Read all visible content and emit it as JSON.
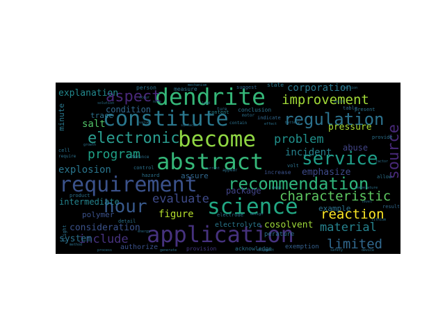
{
  "words": [
    {
      "text": "dendrite",
      "color": "#35b779"
    },
    {
      "text": "constitute",
      "color": "#2a788e"
    },
    {
      "text": "abstract",
      "color": "#35b779"
    },
    {
      "text": "become",
      "color": "#90d743"
    },
    {
      "text": "requirement",
      "color": "#3b528b"
    },
    {
      "text": "recommendation",
      "color": "#2fb47c"
    },
    {
      "text": "science",
      "color": "#22a884"
    },
    {
      "text": "application",
      "color": "#46327e"
    },
    {
      "text": "service",
      "color": "#1f9e89"
    },
    {
      "text": "regulation",
      "color": "#2c728e"
    },
    {
      "text": "electronic",
      "color": "#2a9d8f"
    },
    {
      "text": "aspect",
      "color": "#482878"
    },
    {
      "text": "improvement",
      "color": "#a2da37"
    },
    {
      "text": "source",
      "color": "#482878"
    },
    {
      "text": "hour",
      "color": "#38598c"
    },
    {
      "text": "characteristic",
      "color": "#5ec962"
    },
    {
      "text": "program",
      "color": "#1fa187"
    },
    {
      "text": "reaction",
      "color": "#fde725"
    },
    {
      "text": "limited",
      "color": "#31688e"
    },
    {
      "text": "material",
      "color": "#26828e"
    },
    {
      "text": "problem",
      "color": "#21918c"
    },
    {
      "text": "evaluate",
      "color": "#3e4a89"
    },
    {
      "text": "include",
      "color": "#46327e"
    },
    {
      "text": "figure",
      "color": "#b5de2b"
    },
    {
      "text": "corporation",
      "color": "#2a788e"
    },
    {
      "text": "explosion",
      "color": "#2a768e"
    },
    {
      "text": "incident",
      "color": "#26828e"
    },
    {
      "text": "emphasize",
      "color": "#3e4a89"
    },
    {
      "text": "consideration",
      "color": "#3b528b"
    },
    {
      "text": "cosolvent",
      "color": "#9fda3a"
    },
    {
      "text": "system",
      "color": "#2c728e"
    },
    {
      "text": "intermediate",
      "color": "#25848e"
    },
    {
      "text": "pressure",
      "color": "#a8db34"
    },
    {
      "text": "salt",
      "color": "#52c569"
    },
    {
      "text": "condition",
      "color": "#31688e"
    },
    {
      "text": "explanation",
      "color": "#23898e"
    },
    {
      "text": "abuse",
      "color": "#414487"
    },
    {
      "text": "trace",
      "color": "#2c728e"
    },
    {
      "text": "package",
      "color": "#414487"
    },
    {
      "text": "example",
      "color": "#2c728e"
    },
    {
      "text": "electrolyte",
      "color": "#2a788e"
    },
    {
      "text": "authorize",
      "color": "#3b528b"
    },
    {
      "text": "exemption",
      "color": "#35608d"
    },
    {
      "text": "acknowledge",
      "color": "#2c728e"
    },
    {
      "text": "provision",
      "color": "#443a83"
    },
    {
      "text": "assure",
      "color": "#31688e"
    },
    {
      "text": "minute",
      "color": "#2a788e"
    },
    {
      "text": "polymer",
      "color": "#3b528b"
    },
    {
      "text": "perature",
      "color": "#2c728e"
    },
    {
      "text": "state",
      "color": "#2a788e"
    },
    {
      "text": "measure",
      "color": "#2c728e"
    },
    {
      "text": "content",
      "color": "#26828e"
    },
    {
      "text": "increase",
      "color": "#3b528b"
    },
    {
      "text": "conclusion",
      "color": "#2c728e"
    },
    {
      "text": "indicate",
      "color": "#31688e"
    },
    {
      "text": "person",
      "color": "#2c728e"
    },
    {
      "text": "suggest",
      "color": "#31688e"
    },
    {
      "text": "present",
      "color": "#2c728e"
    },
    {
      "text": "table",
      "color": "#31688e"
    },
    {
      "text": "result",
      "color": "#31688e"
    },
    {
      "text": "provide",
      "color": "#2c728e"
    },
    {
      "text": "allow",
      "color": "#2c728e"
    },
    {
      "text": "volt",
      "color": "#2c728e"
    },
    {
      "text": "hazard",
      "color": "#2c728e"
    },
    {
      "text": "control",
      "color": "#2c728e"
    },
    {
      "text": "electrode",
      "color": "#2c728e"
    },
    {
      "text": "detail",
      "color": "#2c728e"
    },
    {
      "text": "product",
      "color": "#2c728e"
    },
    {
      "text": "flight",
      "color": "#2c728e"
    },
    {
      "text": "appear",
      "color": "#2c728e"
    },
    {
      "text": "motor",
      "color": "#2c728e"
    },
    {
      "text": "reference",
      "color": "#2c728e"
    },
    {
      "text": "contain",
      "color": "#2c728e"
    },
    {
      "text": "cell",
      "color": "#2c728e"
    },
    {
      "text": "ture",
      "color": "#2c728e"
    },
    {
      "text": "require",
      "color": "#2c728e"
    },
    {
      "text": "occur",
      "color": "#2c728e"
    },
    {
      "text": "note",
      "color": "#2c728e"
    },
    {
      "text": "lead",
      "color": "#2c728e"
    },
    {
      "text": "exist",
      "color": "#2c728e"
    },
    {
      "text": "factor",
      "color": "#2c728e"
    },
    {
      "text": "range",
      "color": "#2c728e"
    },
    {
      "text": "design",
      "color": "#2c728e"
    },
    {
      "text": "level",
      "color": "#2c728e"
    },
    {
      "text": "method",
      "color": "#2c728e"
    },
    {
      "text": "energy",
      "color": "#2c728e"
    },
    {
      "text": "device",
      "color": "#2c728e"
    },
    {
      "text": "safety",
      "color": "#2c728e"
    },
    {
      "text": "shipment",
      "color": "#2c728e"
    },
    {
      "text": "generate",
      "color": "#2c728e"
    },
    {
      "text": "process",
      "color": "#2c728e"
    },
    {
      "text": "function",
      "color": "#2c728e"
    },
    {
      "text": "mechanism",
      "color": "#2c728e"
    },
    {
      "text": "temperature",
      "color": "#2c728e"
    },
    {
      "text": "solution",
      "color": "#2c728e"
    },
    {
      "text": "surface",
      "color": "#2c728e"
    },
    {
      "text": "effect",
      "color": "#2c728e"
    },
    {
      "text": "value",
      "color": "#2c728e"
    },
    {
      "text": "growth",
      "color": "#2c728e"
    },
    {
      "text": "lithium",
      "color": "#2c728e"
    },
    {
      "text": "current",
      "color": "#2c728e"
    },
    {
      "text": "battery",
      "color": "#2c728e"
    }
  ]
}
